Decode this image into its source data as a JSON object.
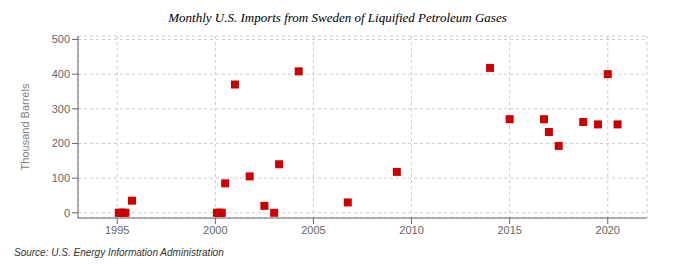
{
  "chart_data": {
    "type": "scatter",
    "title": "Monthly U.S. Imports from Sweden of Liquified Petroleum Gases",
    "ylabel": "Thousand Barrels",
    "source": "Source: U.S. Energy Information Administration",
    "color": "#cc0000",
    "marker": "square",
    "grid": true,
    "xlim": [
      1993.0,
      2022.0
    ],
    "ylim": [
      -15,
      510
    ],
    "xticks": [
      1995,
      2000,
      2005,
      2010,
      2015,
      2020
    ],
    "yticks": [
      0,
      100,
      200,
      300,
      400,
      500
    ],
    "x": [
      1995.75,
      1995.08,
      1995.17,
      1995.25,
      1995.33,
      1995.42,
      2000.5,
      2001.0,
      2001.75,
      2000.08,
      2000.17,
      2000.25,
      2000.33,
      2002.5,
      2003.0,
      2003.25,
      2004.25,
      2006.75,
      2009.25,
      2014.0,
      2015.0,
      2016.75,
      2017.0,
      2017.5,
      2018.75,
      2019.5,
      2020.0,
      2020.5
    ],
    "values": [
      35,
      0,
      0,
      0,
      0,
      0,
      85,
      370,
      105,
      0,
      0,
      0,
      0,
      20,
      0,
      140,
      408,
      30,
      118,
      418,
      270,
      270,
      233,
      193,
      262,
      255,
      400,
      255
    ]
  }
}
